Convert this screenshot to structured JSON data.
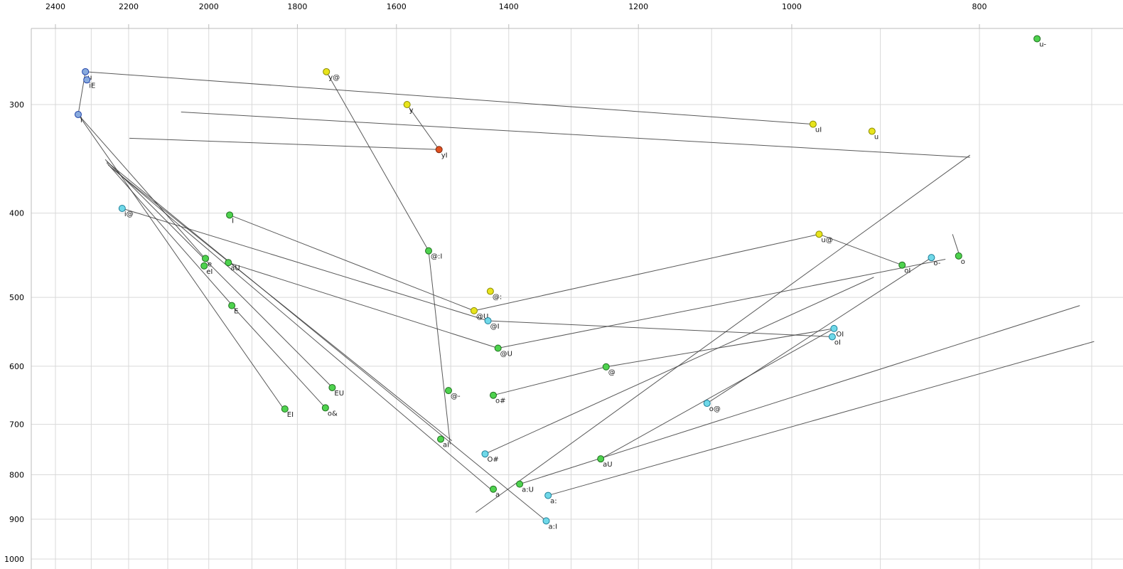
{
  "colors": {
    "background": "#ffffff",
    "gridline": "#d9d9d9",
    "border": "#bbbbbb",
    "trajectory": "#3c3c3c",
    "label_text": "#1a1a1a",
    "point_fills": {
      "green": "#4ed24e",
      "yellow": "#e8e41c",
      "cyan": "#6fd8e8",
      "blue": "#88aadd",
      "red": "#e05020"
    },
    "point_strokes": {
      "green": "#1f6f1f",
      "yellow": "#8a8a00",
      "cyan": "#1f7f99",
      "blue": "#2244aa",
      "red": "#7a2a10"
    }
  },
  "chart_data": {
    "type": "scatter",
    "title": "",
    "xlabel": "",
    "ylabel": "",
    "x_axis": {
      "scale": "log",
      "direction": "reversed",
      "ticks": [
        2400,
        2200,
        2000,
        1800,
        1600,
        1400,
        1200,
        1000,
        800
      ],
      "grid": [
        2400,
        2300,
        2200,
        2100,
        2000,
        1900,
        1800,
        1700,
        1600,
        1500,
        1400,
        1300,
        1200,
        1100,
        1000,
        900,
        800,
        700
      ]
    },
    "y_axis": {
      "scale": "log",
      "direction": "reversed",
      "ticks": [
        300,
        400,
        500,
        600,
        700,
        800,
        900,
        1000
      ],
      "grid": [
        300,
        400,
        500,
        600,
        700,
        800,
        900,
        1000
      ]
    },
    "points": [
      {
        "label": "u-",
        "f2": 747,
        "f1": 252,
        "color": "green"
      },
      {
        "label": "u",
        "f2": 2316,
        "f1": 275,
        "color": "blue"
      },
      {
        "label": "iE",
        "f2": 2312,
        "f1": 281,
        "color": "blue"
      },
      {
        "label": "i",
        "f2": 2336,
        "f1": 308,
        "color": "blue"
      },
      {
        "label": "y@",
        "f2": 1739,
        "f1": 275,
        "color": "yellow"
      },
      {
        "label": "y",
        "f2": 1580,
        "f1": 300,
        "color": "yellow"
      },
      {
        "label": "uI",
        "f2": 975,
        "f1": 316,
        "color": "yellow"
      },
      {
        "label": "u",
        "f2": 909,
        "f1": 322,
        "color": "yellow"
      },
      {
        "label": "yI",
        "f2": 1521,
        "f1": 338,
        "color": "red"
      },
      {
        "label": "i@",
        "f2": 2217,
        "f1": 395,
        "color": "cyan"
      },
      {
        "label": "I",
        "f2": 1951,
        "f1": 402,
        "color": "green"
      },
      {
        "label": "u@",
        "f2": 968,
        "f1": 423,
        "color": "yellow"
      },
      {
        "label": "@:I",
        "f2": 1540,
        "f1": 442,
        "color": "green"
      },
      {
        "label": "o-",
        "f2": 847,
        "f1": 450,
        "color": "cyan"
      },
      {
        "label": "o",
        "f2": 820,
        "f1": 448,
        "color": "green"
      },
      {
        "label": "oI",
        "f2": 877,
        "f1": 459,
        "color": "green"
      },
      {
        "label": "e",
        "f2": 2008,
        "f1": 451,
        "color": "green"
      },
      {
        "label": "eI",
        "f2": 2011,
        "f1": 460,
        "color": "green"
      },
      {
        "label": "aU",
        "f2": 1954,
        "f1": 456,
        "color": "green"
      },
      {
        "label": "@:",
        "f2": 1431,
        "f1": 492,
        "color": "yellow"
      },
      {
        "label": "E",
        "f2": 1946,
        "f1": 511,
        "color": "green"
      },
      {
        "label": "@U",
        "f2": 1459,
        "f1": 518,
        "color": "yellow"
      },
      {
        "label": "@I",
        "f2": 1435,
        "f1": 532,
        "color": "cyan"
      },
      {
        "label": "OI",
        "f2": 951,
        "f1": 543,
        "color": "cyan"
      },
      {
        "label": "oI",
        "f2": 953,
        "f1": 555,
        "color": "cyan"
      },
      {
        "label": "@U",
        "f2": 1418,
        "f1": 572,
        "color": "green"
      },
      {
        "label": "@",
        "f2": 1247,
        "f1": 601,
        "color": "green"
      },
      {
        "label": "EU",
        "f2": 1727,
        "f1": 635,
        "color": "green"
      },
      {
        "label": "@-",
        "f2": 1504,
        "f1": 640,
        "color": "green"
      },
      {
        "label": "o#",
        "f2": 1426,
        "f1": 648,
        "color": "green"
      },
      {
        "label": "o@",
        "f2": 1106,
        "f1": 662,
        "color": "cyan"
      },
      {
        "label": "o&",
        "f2": 1741,
        "f1": 670,
        "color": "green"
      },
      {
        "label": "EI",
        "f2": 1827,
        "f1": 672,
        "color": "green"
      },
      {
        "label": "aI",
        "f2": 1518,
        "f1": 728,
        "color": "green"
      },
      {
        "label": "O#",
        "f2": 1440,
        "f1": 757,
        "color": "cyan"
      },
      {
        "label": "aU",
        "f2": 1255,
        "f1": 767,
        "color": "green"
      },
      {
        "label": "a",
        "f2": 1426,
        "f1": 831,
        "color": "green"
      },
      {
        "label": "a:U",
        "f2": 1382,
        "f1": 820,
        "color": "green"
      },
      {
        "label": "a:",
        "f2": 1336,
        "f1": 845,
        "color": "cyan"
      },
      {
        "label": "a:I",
        "f2": 1339,
        "f1": 904,
        "color": "cyan"
      }
    ],
    "lines": [
      [
        2316,
        275,
        975,
        316
      ],
      [
        2316,
        275,
        2336,
        308
      ],
      [
        2336,
        308,
        2007,
        452
      ],
      [
        1739,
        275,
        1540,
        442
      ],
      [
        1540,
        442,
        1501,
        738
      ],
      [
        1580,
        300,
        1521,
        338
      ],
      [
        2336,
        308,
        1827,
        675
      ],
      [
        2258,
        349,
        1339,
        904
      ],
      [
        2254,
        352,
        1426,
        836
      ],
      [
        2248,
        354,
        1498,
        731
      ],
      [
        2262,
        347,
        1724,
        637
      ],
      [
        2258,
        350,
        1940,
        514
      ],
      [
        2198,
        328,
        1521,
        338
      ],
      [
        2067,
        306,
        809,
        345
      ],
      [
        1418,
        572,
        833,
        452
      ],
      [
        1106,
        662,
        847,
        450
      ],
      [
        1255,
        767,
        951,
        543
      ],
      [
        1382,
        820,
        710,
        511
      ],
      [
        1336,
        845,
        698,
        562
      ],
      [
        1440,
        757,
        907,
        474
      ],
      [
        1459,
        518,
        968,
        423
      ],
      [
        1435,
        532,
        953,
        555
      ],
      [
        1426,
        648,
        1247,
        601
      ],
      [
        1247,
        601,
        951,
        543
      ],
      [
        1951,
        402,
        1459,
        518
      ],
      [
        1954,
        456,
        1418,
        572
      ],
      [
        968,
        423,
        877,
        459
      ],
      [
        1946,
        511,
        1741,
        670
      ],
      [
        2217,
        395,
        1435,
        532
      ],
      [
        1456,
        884,
        809,
        343
      ],
      [
        826,
        423,
        819,
        448
      ]
    ]
  }
}
